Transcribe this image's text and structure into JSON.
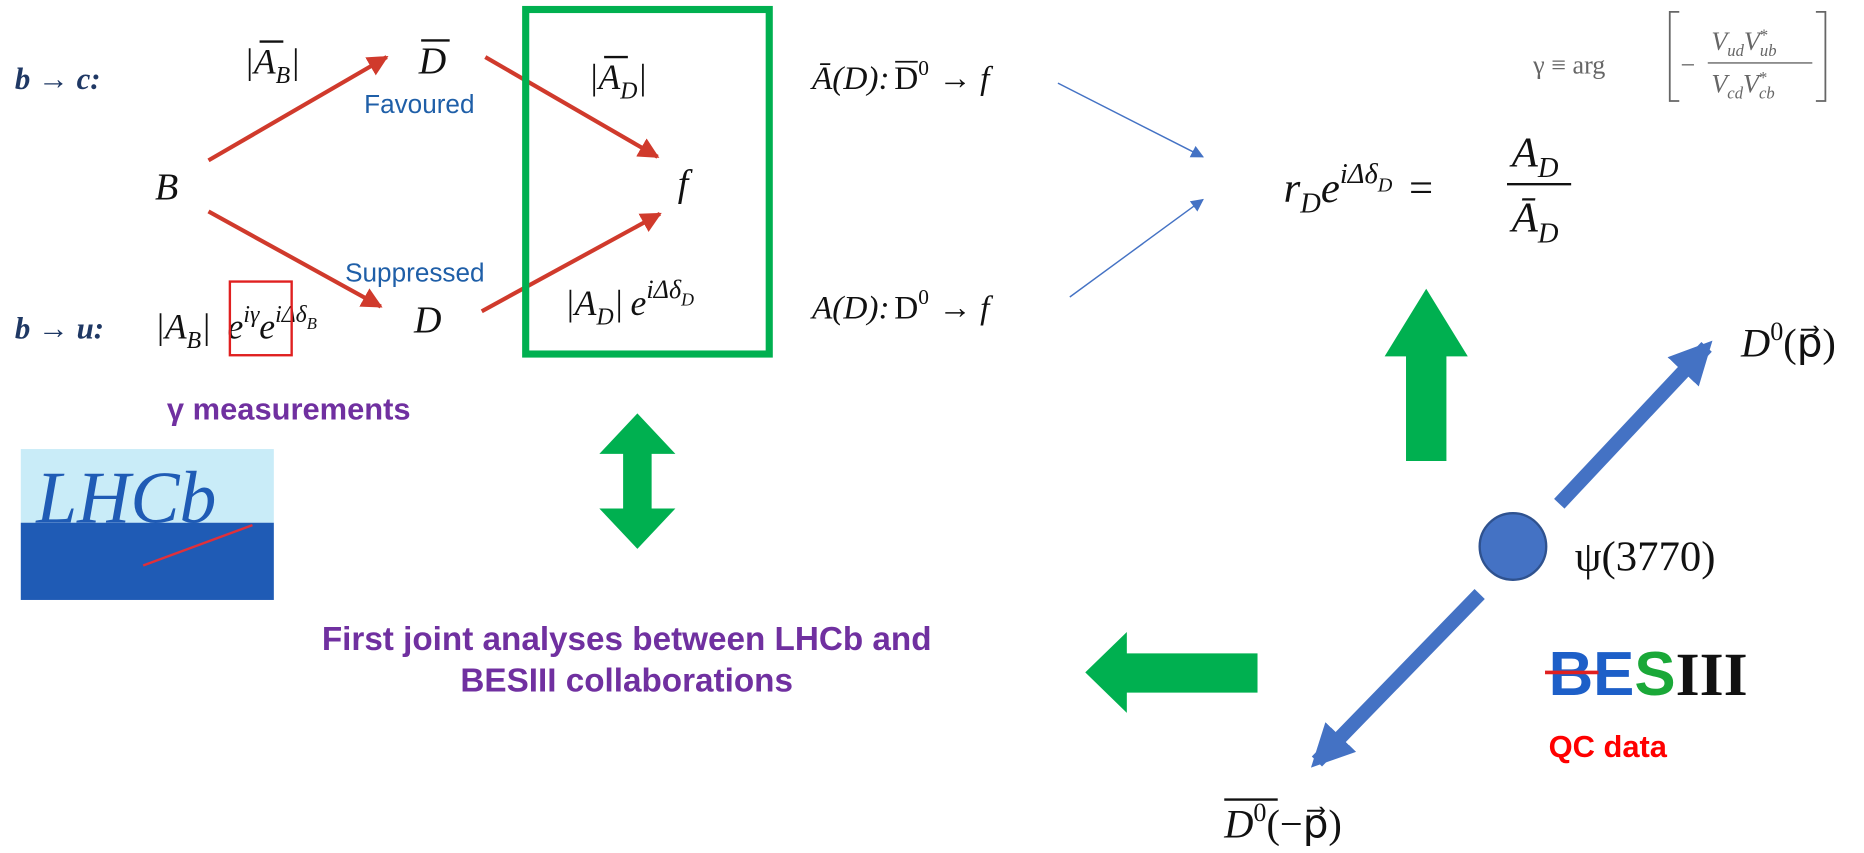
{
  "processes": {
    "favoured": "b → c:",
    "suppressed": "b → u:"
  },
  "tree": {
    "B": "B",
    "D_bar": "D",
    "D": "D",
    "f": "f",
    "favoured_label": "Favoured",
    "suppressed_label": "Suppressed"
  },
  "amp_B_bar": {
    "open": "|",
    "A": "A",
    "sub": "B",
    "close": "|"
  },
  "amp_B": {
    "open": "|",
    "A": "A",
    "sub": "B",
    "close": "|",
    "e1": "e",
    "e1_sup": "iγ",
    "e2": "e",
    "e2_sup": "iΔδ",
    "e2_sup_sub": "B"
  },
  "amp_D_bar": {
    "open": "|",
    "A": "A",
    "sub": "D",
    "close": "|"
  },
  "amp_D": {
    "open": "|",
    "A": "A",
    "sub": "D",
    "close": "|",
    "e": "e",
    "sup": "iΔδ",
    "sup_sub": "D"
  },
  "decay_bar": {
    "lhs": "Ā(D):",
    "D": "D",
    "sup": "0",
    "rhs": "→ f"
  },
  "decay": {
    "lhs": "A(D):",
    "D": "D",
    "sup": "0",
    "rhs": "→ f"
  },
  "ratio": {
    "r": "r",
    "r_sub": "D",
    "e": "e",
    "sup": "iΔδ",
    "sup_sub": "D",
    "eq": "=",
    "num": "A",
    "num_sub": "D",
    "den": "Ā",
    "den_sub": "D"
  },
  "gamma_def": {
    "lhs": "γ ≡ arg",
    "sign": "−",
    "n1": "V",
    "n1_sub": "ud",
    "n2": "V",
    "n2_sup": "*",
    "n2_sub": "ub",
    "d1": "V",
    "d1_sub": "cd",
    "d2": "V",
    "d2_sup": "*",
    "d2_sub": "cb"
  },
  "gamma_measurements": "γ measurements",
  "lhcb_logo": "LHCb",
  "joint": [
    "First joint analyses between LHCb and",
    "BESIII collaborations"
  ],
  "psi": "ψ(3770)",
  "D0": {
    "D": "D",
    "sup": "0",
    "mom": "(p⃗)"
  },
  "D0_bar": {
    "D": "D",
    "sup": "0",
    "mom": "(−p⃗)"
  },
  "bes_logo": [
    "B",
    "E",
    "S",
    "III"
  ],
  "qc_data": "QC data"
}
